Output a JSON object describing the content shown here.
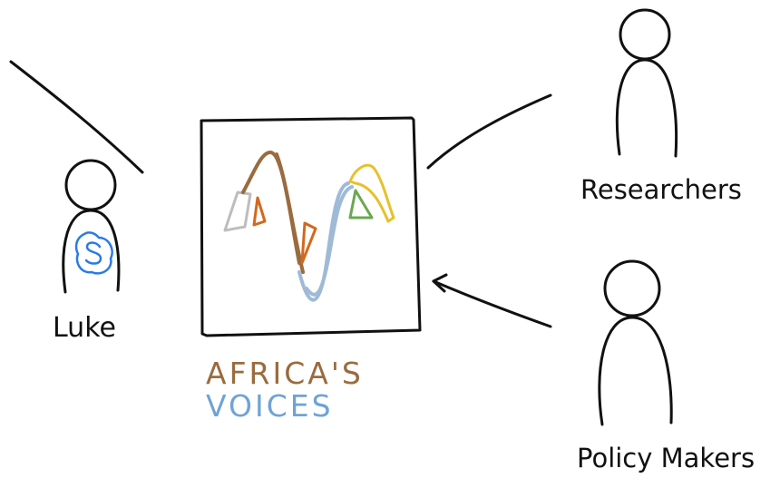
{
  "people": {
    "luke": {
      "label": "Luke",
      "badge_icon": "skype-icon"
    },
    "researchers": {
      "label": "Researchers"
    },
    "policy_makers": {
      "label": "Policy Makers"
    }
  },
  "brand": {
    "line1": "AFRICA'S",
    "line2": "VOICES"
  },
  "colors": {
    "ink": "#111111",
    "brand_brown": "#9a6b3e",
    "brand_blue": "#6fa3d6",
    "skype_blue": "#2a7be4",
    "logo_grey": "#bdbdbd",
    "logo_orange": "#d2691e",
    "logo_yellow": "#e6c12a",
    "logo_green": "#6aa84f"
  }
}
